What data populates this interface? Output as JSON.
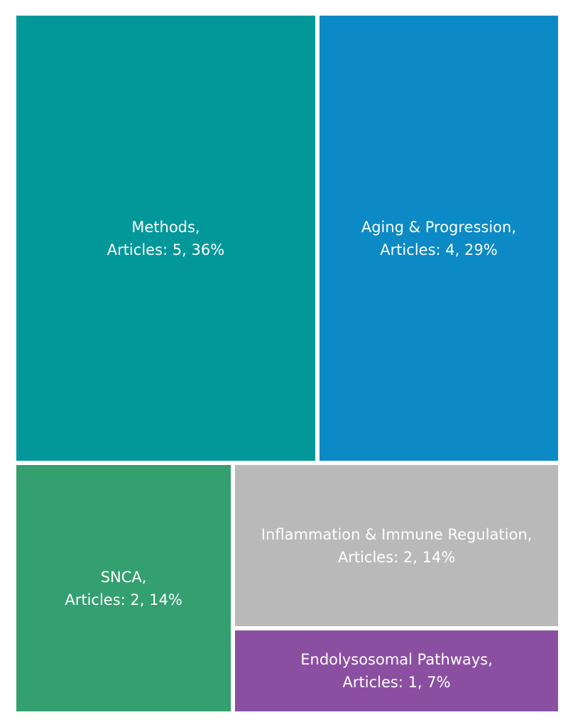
{
  "chart_data": {
    "type": "treemap",
    "categories": [
      "Methods",
      "Aging & Progression",
      "SNCA",
      "Inflammation & Immune Regulation",
      "Endolysosomal Pathways"
    ],
    "values": [
      5,
      4,
      2,
      2,
      1
    ],
    "percents": [
      "36%",
      "29%",
      "14%",
      "14%",
      "7%"
    ],
    "colors": [
      "#02989a",
      "#0c8ac6",
      "#349f6f",
      "#b9b9b9",
      "#8b4fa2"
    ],
    "tiles": [
      {
        "name": "Methods,",
        "detail": "Articles: 5, 36%"
      },
      {
        "name": "Aging & Progression,",
        "detail": "Articles: 4, 29%"
      },
      {
        "name": "SNCA,",
        "detail": "Articles: 2, 14%"
      },
      {
        "name": "Inflammation & Immune Regulation,",
        "detail": "Articles: 2, 14%"
      },
      {
        "name": "Endolysosomal Pathways,",
        "detail": "Articles: 1, 7%"
      }
    ]
  }
}
